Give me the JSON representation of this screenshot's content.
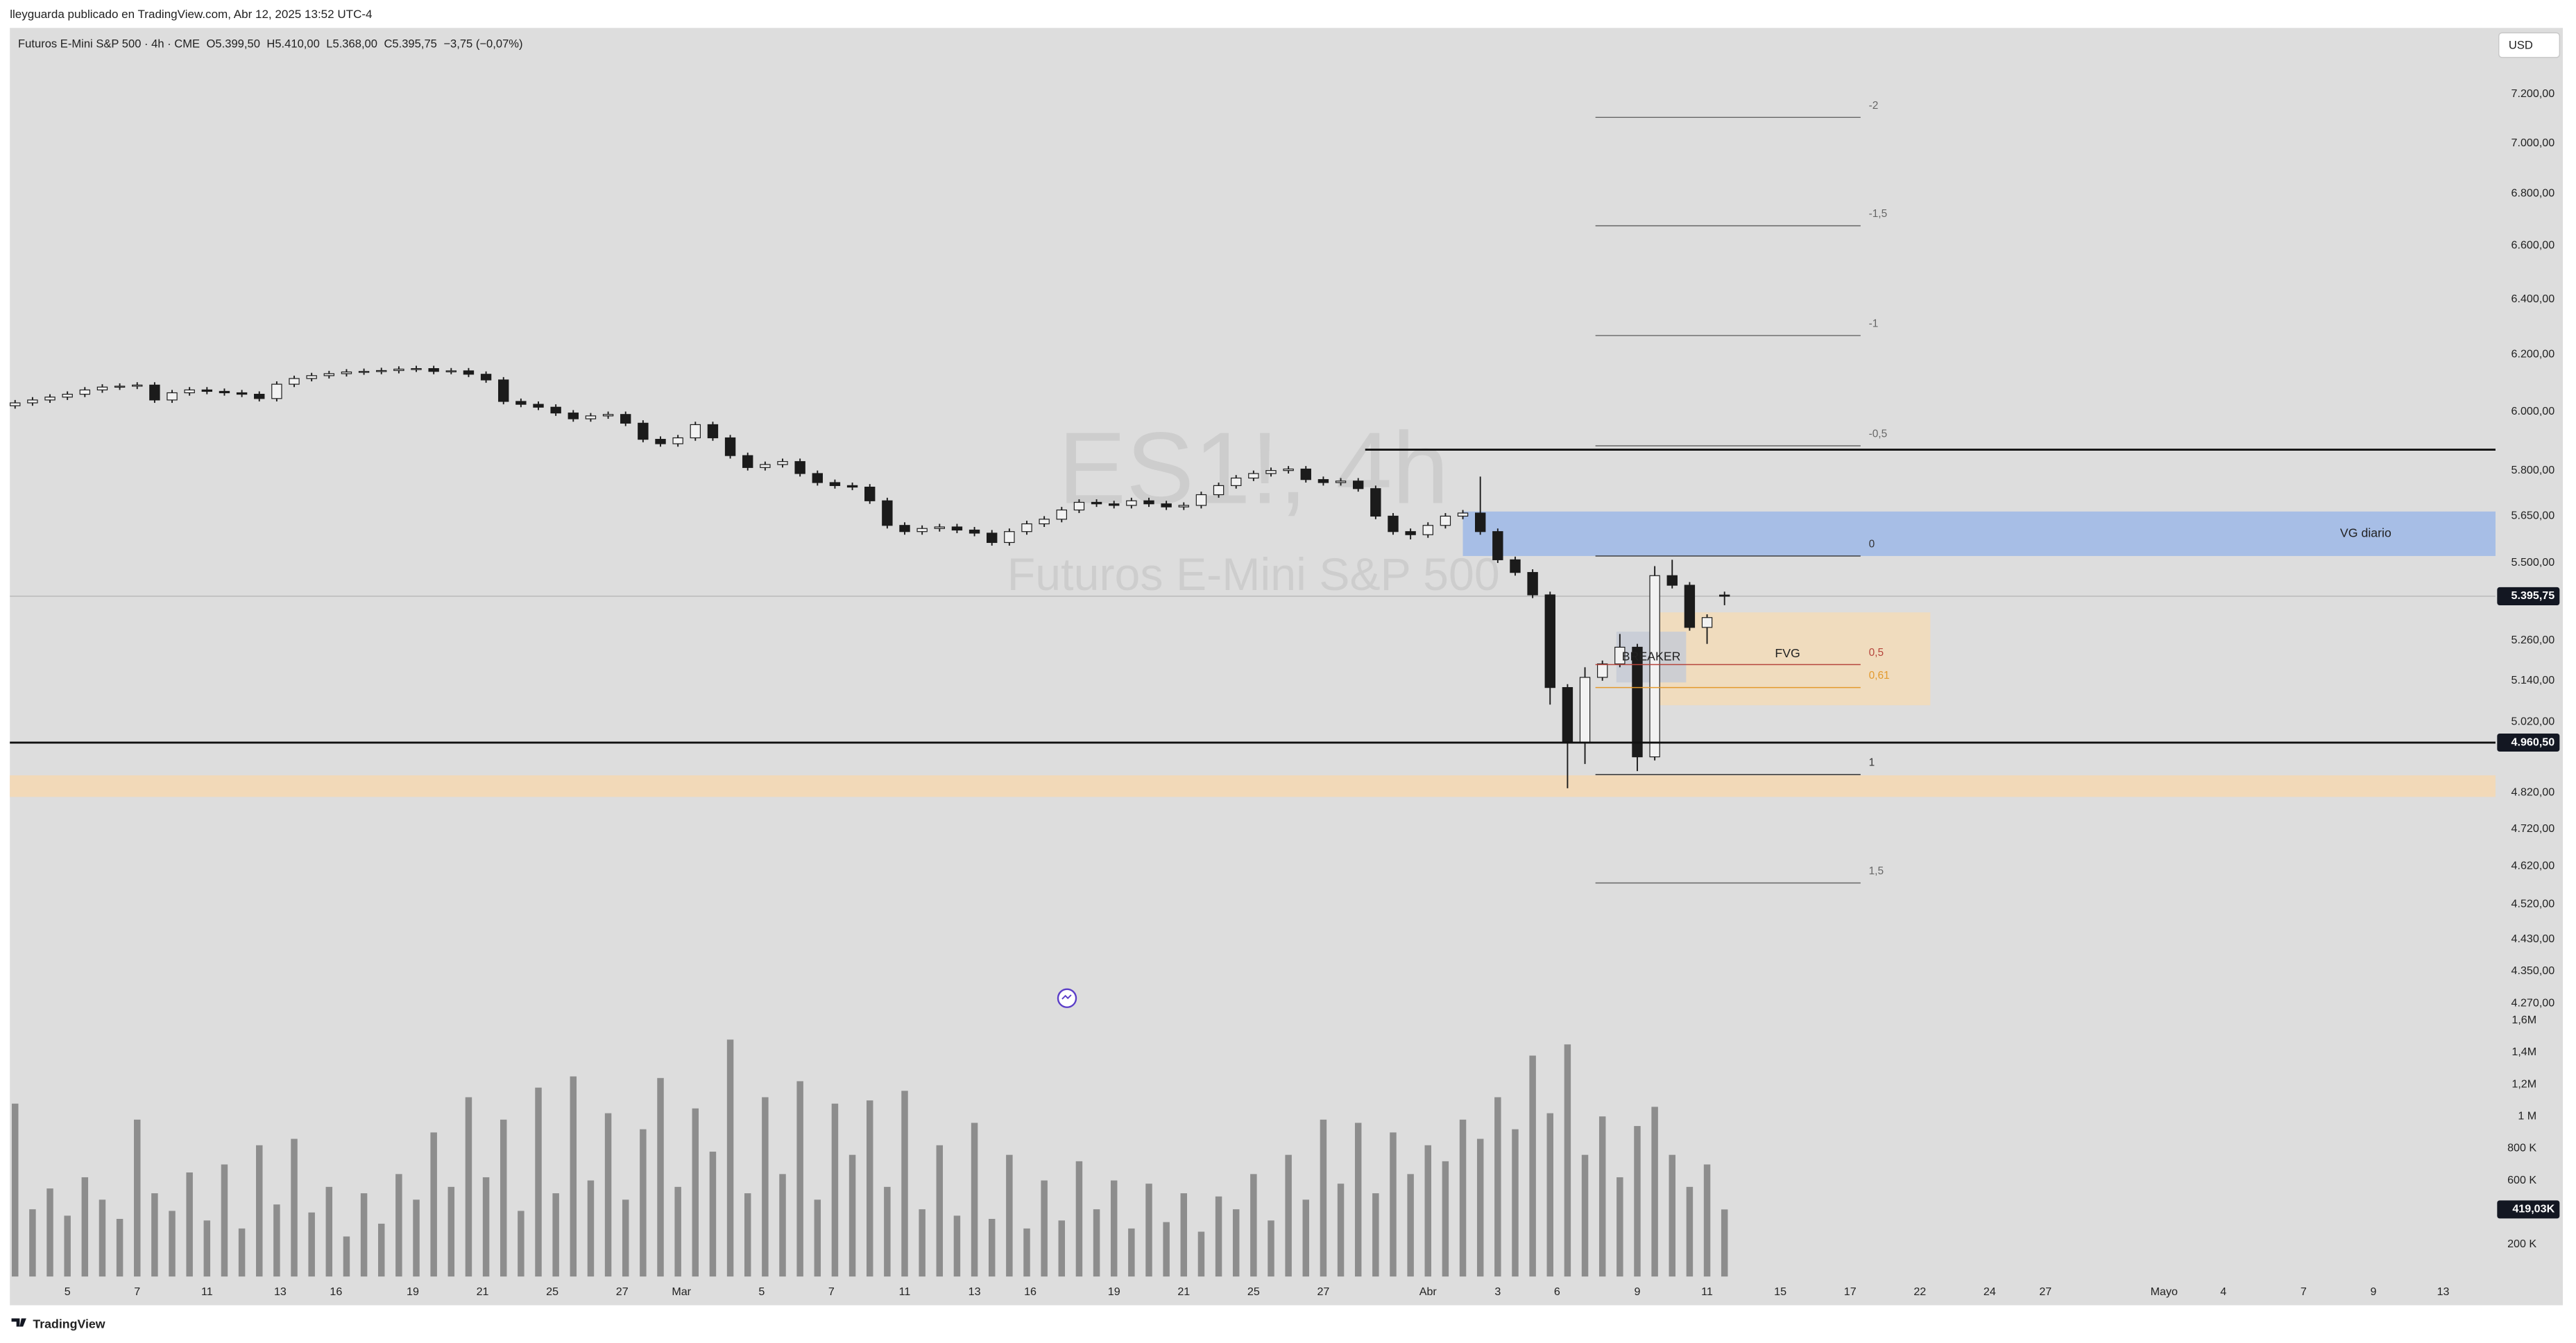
{
  "chart_data": {
    "type": "candlestick",
    "header": "lleyguarda publicado en TradingView.com, Abr 12, 2025 13:52 UTC-4",
    "legend": "Futuros E-Mini S&P 500 · 4h · CME",
    "legend_values": [
      "O5.399,50",
      "H5.410,00",
      "L5.368,00",
      "C5.395,75",
      "−3,75 (−0,07%)"
    ],
    "watermark": "ES1!, 4h",
    "watermark_subtitle": "Futuros E-Mini S&P 500",
    "currency": "USD",
    "footer": "TradingView",
    "log_scale": true,
    "grid": false,
    "up_color": "#f2f2f2",
    "down_color": "#1b1b1b",
    "volume_color": "#8d8d8d",
    "xlim": [
      0.35,
      71.6
    ],
    "ylim": [
      3590,
      7480
    ],
    "volume_ylim": [
      0,
      7800000
    ],
    "xticks": [
      {
        "value": 2,
        "label": "5"
      },
      {
        "value": 4,
        "label": "7"
      },
      {
        "value": 6,
        "label": "11"
      },
      {
        "value": 8.1,
        "label": "13"
      },
      {
        "value": 9.7,
        "label": "16"
      },
      {
        "value": 11.9,
        "label": "19"
      },
      {
        "value": 13.9,
        "label": "21"
      },
      {
        "value": 15.9,
        "label": "25"
      },
      {
        "value": 17.9,
        "label": "27"
      },
      {
        "value": 19.6,
        "label": "Mar"
      },
      {
        "value": 21.9,
        "label": "5"
      },
      {
        "value": 23.9,
        "label": "7"
      },
      {
        "value": 26,
        "label": "11"
      },
      {
        "value": 28,
        "label": "13"
      },
      {
        "value": 29.6,
        "label": "16"
      },
      {
        "value": 32,
        "label": "19"
      },
      {
        "value": 34,
        "label": "21"
      },
      {
        "value": 36,
        "label": "25"
      },
      {
        "value": 38,
        "label": "27"
      },
      {
        "value": 41,
        "label": "Abr"
      },
      {
        "value": 43,
        "label": "3"
      },
      {
        "value": 44.7,
        "label": "6"
      },
      {
        "value": 47,
        "label": "9"
      },
      {
        "value": 49,
        "label": "11"
      },
      {
        "value": 51.1,
        "label": "15"
      },
      {
        "value": 53.1,
        "label": "17"
      },
      {
        "value": 55.1,
        "label": "22"
      },
      {
        "value": 57.1,
        "label": "24"
      },
      {
        "value": 58.7,
        "label": "27"
      },
      {
        "value": 62.1,
        "label": "Mayo"
      },
      {
        "value": 63.8,
        "label": "4"
      },
      {
        "value": 66.1,
        "label": "7"
      },
      {
        "value": 68.1,
        "label": "9"
      },
      {
        "value": 70.1,
        "label": "13"
      }
    ],
    "yticks": [
      {
        "value": 7200,
        "label": "7.200,00"
      },
      {
        "value": 7000,
        "label": "7.000,00"
      },
      {
        "value": 6800,
        "label": "6.800,00"
      },
      {
        "value": 6600,
        "label": "6.600,00"
      },
      {
        "value": 6400,
        "label": "6.400,00"
      },
      {
        "value": 6200,
        "label": "6.200,00"
      },
      {
        "value": 6000,
        "label": "6.000,00"
      },
      {
        "value": 5800,
        "label": "5.800,00"
      },
      {
        "value": 5650,
        "label": "5.650,00"
      },
      {
        "value": 5500,
        "label": "5.500,00"
      },
      {
        "value": 5260,
        "label": "5.260,00"
      },
      {
        "value": 5140,
        "label": "5.140,00"
      },
      {
        "value": 5020,
        "label": "5.020,00"
      },
      {
        "value": 4820,
        "label": "4.820,00"
      },
      {
        "value": 4720,
        "label": "4.720,00"
      },
      {
        "value": 4620,
        "label": "4.620,00"
      },
      {
        "value": 4520,
        "label": "4.520,00"
      },
      {
        "value": 4430,
        "label": "4.430,00"
      },
      {
        "value": 4350,
        "label": "4.350,00"
      },
      {
        "value": 4270,
        "label": "4.270,00"
      }
    ],
    "volume_ticks": [
      {
        "value": 1600000,
        "label": "1,6M"
      },
      {
        "value": 1400000,
        "label": "1,4M"
      },
      {
        "value": 1200000,
        "label": "1,2M"
      },
      {
        "value": 1000000,
        "label": "1 M"
      },
      {
        "value": 800000,
        "label": "800 K"
      },
      {
        "value": 600000,
        "label": "600 K"
      },
      {
        "value": 200000,
        "label": "200 K"
      }
    ],
    "price_tag": {
      "value": 5395.75,
      "label": "5.395,75"
    },
    "volume_tag": {
      "value": 419030,
      "label": "419,03K"
    },
    "x": [
      0.5,
      1,
      1.5,
      2,
      2.5,
      3,
      3.5,
      4,
      4.5,
      5,
      5.5,
      6,
      6.5,
      7,
      7.5,
      8,
      8.5,
      9,
      9.5,
      10,
      10.5,
      11,
      11.5,
      12,
      12.5,
      13,
      13.5,
      14,
      14.5,
      15,
      15.5,
      16,
      16.5,
      17,
      17.5,
      18,
      18.5,
      19,
      19.5,
      20,
      20.5,
      21,
      21.5,
      22,
      22.5,
      23,
      23.5,
      24,
      24.5,
      25,
      25.5,
      26,
      26.5,
      27,
      27.5,
      28,
      28.5,
      29,
      29.5,
      30,
      30.5,
      31,
      31.5,
      32,
      32.5,
      33,
      33.5,
      34,
      34.5,
      35,
      35.5,
      36,
      36.5,
      37,
      37.5,
      38,
      38.5,
      39,
      39.5,
      40,
      40.5,
      41,
      41.5,
      42,
      42.5,
      43,
      43.5,
      44,
      44.5,
      45,
      45.5,
      46,
      46.5,
      47,
      47.5,
      48,
      48.5,
      49,
      49.5
    ],
    "open": [
      6020,
      6030,
      6040,
      6050,
      6060,
      6075,
      6085,
      6088,
      6092,
      6040,
      6065,
      6075,
      6070,
      6065,
      6060,
      6045,
      6095,
      6115,
      6125,
      6132,
      6138,
      6140,
      6143,
      6148,
      6150,
      6140,
      6142,
      6130,
      6110,
      6035,
      6025,
      6015,
      5995,
      5975,
      5985,
      5990,
      5960,
      5905,
      5890,
      5910,
      5955,
      5910,
      5850,
      5810,
      5820,
      5830,
      5790,
      5760,
      5750,
      5745,
      5700,
      5620,
      5600,
      5610,
      5615,
      5605,
      5595,
      5565,
      5600,
      5625,
      5640,
      5670,
      5695,
      5690,
      5685,
      5700,
      5690,
      5680,
      5685,
      5720,
      5750,
      5775,
      5790,
      5800,
      5805,
      5770,
      5760,
      5765,
      5740,
      5650,
      5600,
      5590,
      5620,
      5650,
      5660,
      5600,
      5510,
      5470,
      5400,
      5120,
      4960,
      5150,
      5190,
      5240,
      4920,
      5460,
      5430,
      5300,
      5399.5
    ],
    "high": [
      6040,
      6050,
      6060,
      6070,
      6085,
      6095,
      6098,
      6102,
      6102,
      6075,
      6085,
      6085,
      6080,
      6075,
      6070,
      6105,
      6125,
      6135,
      6142,
      6148,
      6150,
      6153,
      6158,
      6160,
      6160,
      6152,
      6152,
      6140,
      6120,
      6045,
      6035,
      6025,
      6005,
      5995,
      6000,
      6000,
      5970,
      5915,
      5920,
      5965,
      5965,
      5920,
      5860,
      5830,
      5840,
      5840,
      5800,
      5770,
      5760,
      5755,
      5710,
      5630,
      5620,
      5625,
      5625,
      5615,
      5605,
      5610,
      5635,
      5650,
      5680,
      5705,
      5705,
      5700,
      5710,
      5710,
      5700,
      5695,
      5730,
      5760,
      5785,
      5800,
      5810,
      5815,
      5815,
      5780,
      5775,
      5775,
      5750,
      5660,
      5610,
      5630,
      5660,
      5670,
      5780,
      5610,
      5520,
      5480,
      5410,
      5130,
      5180,
      5200,
      5280,
      5250,
      5490,
      5510,
      5440,
      5340,
      5410
    ],
    "low": [
      6010,
      6020,
      6030,
      6040,
      6050,
      6065,
      6075,
      6078,
      6030,
      6030,
      6055,
      6060,
      6055,
      6050,
      6035,
      6035,
      6085,
      6105,
      6115,
      6122,
      6128,
      6130,
      6133,
      6138,
      6130,
      6130,
      6120,
      6100,
      6025,
      6015,
      6005,
      5985,
      5965,
      5965,
      5975,
      5950,
      5895,
      5880,
      5880,
      5900,
      5900,
      5840,
      5800,
      5800,
      5810,
      5780,
      5750,
      5740,
      5735,
      5690,
      5610,
      5590,
      5590,
      5600,
      5595,
      5585,
      5555,
      5555,
      5590,
      5615,
      5630,
      5660,
      5680,
      5675,
      5675,
      5680,
      5670,
      5670,
      5675,
      5710,
      5740,
      5765,
      5780,
      5790,
      5760,
      5750,
      5750,
      5730,
      5640,
      5590,
      5575,
      5580,
      5610,
      5640,
      5590,
      5500,
      5460,
      5390,
      5070,
      4832,
      4900,
      5140,
      5180,
      4880,
      4910,
      5420,
      5290,
      5250,
      5368
    ],
    "close": [
      6030,
      6040,
      6050,
      6060,
      6075,
      6085,
      6088,
      6092,
      6040,
      6065,
      6075,
      6070,
      6065,
      6060,
      6045,
      6095,
      6115,
      6125,
      6132,
      6138,
      6140,
      6143,
      6148,
      6150,
      6140,
      6142,
      6130,
      6110,
      6035,
      6025,
      6015,
      5995,
      5975,
      5985,
      5990,
      5960,
      5905,
      5890,
      5910,
      5955,
      5910,
      5850,
      5810,
      5820,
      5830,
      5790,
      5760,
      5750,
      5745,
      5700,
      5620,
      5600,
      5610,
      5615,
      5605,
      5595,
      5565,
      5600,
      5625,
      5640,
      5670,
      5695,
      5690,
      5685,
      5700,
      5690,
      5680,
      5685,
      5720,
      5750,
      5775,
      5790,
      5800,
      5805,
      5770,
      5760,
      5765,
      5740,
      5650,
      5600,
      5590,
      5620,
      5650,
      5660,
      5600,
      5510,
      5470,
      5400,
      5120,
      4960,
      5150,
      5190,
      5240,
      4920,
      5460,
      5430,
      5300,
      5330,
      5395.75
    ],
    "volume": [
      1080000,
      420000,
      550000,
      380000,
      620000,
      480000,
      360000,
      980000,
      520000,
      410000,
      650000,
      350000,
      700000,
      300000,
      820000,
      450000,
      860000,
      400000,
      560000,
      250000,
      520000,
      330000,
      640000,
      480000,
      900000,
      560000,
      1120000,
      620000,
      980000,
      410000,
      1180000,
      520000,
      1250000,
      600000,
      1020000,
      480000,
      920000,
      1240000,
      560000,
      1050000,
      780000,
      1480000,
      520000,
      1120000,
      640000,
      1220000,
      480000,
      1080000,
      760000,
      1100000,
      560000,
      1160000,
      420000,
      820000,
      380000,
      960000,
      360000,
      760000,
      300000,
      600000,
      350000,
      720000,
      420000,
      600000,
      300000,
      580000,
      340000,
      520000,
      280000,
      500000,
      420000,
      640000,
      350000,
      760000,
      480000,
      980000,
      580000,
      960000,
      520000,
      900000,
      640000,
      820000,
      720000,
      980000,
      860000,
      1120000,
      920000,
      1380000,
      1020000,
      1450000,
      760000,
      1000000,
      620000,
      940000,
      1060000,
      760000,
      560000,
      700000,
      419030
    ],
    "resistance_line": {
      "value": 5870,
      "start": 39.2,
      "color": "#111111"
    },
    "support_line": {
      "value": 4960.5,
      "label": "4.960,50",
      "color": "#111111"
    },
    "band": {
      "top": 4868,
      "bottom": 4808,
      "color": "#f2d9b8"
    },
    "vg_zone": {
      "label": "VG diario",
      "top": 5665,
      "bottom": 5522,
      "start": 42.0,
      "color": "#a3bce6"
    },
    "fvg_zone": {
      "label": "FVG",
      "top": 5346,
      "bottom": 5068,
      "start": 47.4,
      "end": 55.4,
      "color": "#f3dcb9"
    },
    "breaker_zone": {
      "label": "BREAKER",
      "top": 5287,
      "bottom": 5135,
      "start": 46.4,
      "end": 48.4,
      "color": "#c7cbd6"
    },
    "fib": {
      "start": 45.8,
      "end": 53.4,
      "levels": [
        {
          "value": 7105,
          "label": "-2",
          "color": "#666666"
        },
        {
          "value": 6676,
          "label": "-1,5",
          "color": "#666666"
        },
        {
          "value": 6268,
          "label": "-1",
          "color": "#666666"
        },
        {
          "value": 5883,
          "label": "-0,5",
          "color": "#666666"
        },
        {
          "value": 5522,
          "label": "0",
          "color": "#333333"
        },
        {
          "value": 5188,
          "label": "0,5",
          "color": "#b5453c"
        },
        {
          "value": 5120,
          "label": "0,61",
          "color": "#e39a2d"
        },
        {
          "value": 4870,
          "label": "1",
          "color": "#333333"
        },
        {
          "value": 4576,
          "label": "1,5",
          "color": "#666666"
        }
      ]
    }
  }
}
